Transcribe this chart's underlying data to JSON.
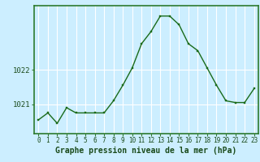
{
  "x": [
    0,
    1,
    2,
    3,
    4,
    5,
    6,
    7,
    8,
    9,
    10,
    11,
    12,
    13,
    14,
    15,
    16,
    17,
    18,
    19,
    20,
    21,
    22,
    23
  ],
  "y": [
    1020.55,
    1020.75,
    1020.45,
    1020.9,
    1020.75,
    1020.75,
    1020.75,
    1020.75,
    1021.1,
    1021.55,
    1022.05,
    1022.75,
    1023.1,
    1023.55,
    1023.55,
    1023.3,
    1022.75,
    1022.55,
    1022.05,
    1021.55,
    1021.1,
    1021.05,
    1021.05,
    1021.45
  ],
  "background_color": "#cceeff",
  "grid_color": "#ffffff",
  "line_color": "#1a6b1a",
  "marker_color": "#1a6b1a",
  "ylabel_ticks": [
    1021,
    1022
  ],
  "xlabel_label": "Graphe pression niveau de la mer (hPa)",
  "ylim": [
    1020.15,
    1023.85
  ],
  "xlim": [
    -0.5,
    23.5
  ],
  "border_color": "#2d7a2d",
  "text_color": "#1a4a1a",
  "tick_fontsize": 5.5,
  "label_fontsize": 7.0,
  "ytick_fontsize": 6.5
}
